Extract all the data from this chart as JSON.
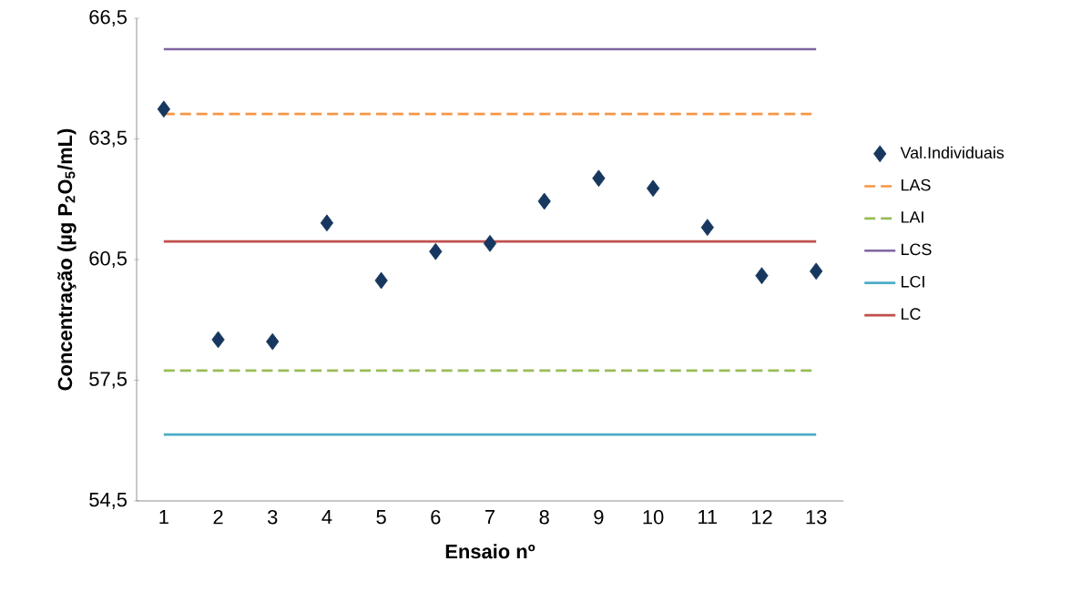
{
  "chart_data": {
    "type": "line",
    "xlabel": "Ensaio nº",
    "ylabel": "Concentração (µg P$_{2}$O$_{5}$/mL)",
    "categories": [
      "1",
      "2",
      "3",
      "4",
      "5",
      "6",
      "7",
      "8",
      "9",
      "10",
      "11",
      "12",
      "13"
    ],
    "ylim": [
      54.5,
      66.5
    ],
    "yticks": [
      {
        "value": 54.5,
        "label": "54,5"
      },
      {
        "value": 57.5,
        "label": "57,5"
      },
      {
        "value": 60.5,
        "label": "60,5"
      },
      {
        "value": 63.5,
        "label": "63,5"
      },
      {
        "value": 66.5,
        "label": "66,5"
      }
    ],
    "grid": false,
    "legend": "right",
    "series": [
      {
        "name": "Val.Individuais",
        "type": "scatter",
        "marker": "diamond",
        "color": "#17375e",
        "values": [
          64.24,
          58.51,
          58.46,
          61.41,
          59.98,
          60.7,
          60.9,
          61.95,
          62.52,
          62.27,
          61.3,
          60.1,
          60.21
        ]
      },
      {
        "name": "LAS",
        "line_style": "dashed",
        "color": "#f79646",
        "values": [
          64.12,
          64.12,
          64.12,
          64.12,
          64.12,
          64.12,
          64.12,
          64.12,
          64.12,
          64.12,
          64.12,
          64.12,
          64.12
        ]
      },
      {
        "name": "LAI",
        "line_style": "dashed",
        "color": "#9bbb59",
        "values": [
          57.74,
          57.74,
          57.74,
          57.74,
          57.74,
          57.74,
          57.74,
          57.74,
          57.74,
          57.74,
          57.74,
          57.74,
          57.74
        ]
      },
      {
        "name": "LCS",
        "line_style": "solid",
        "color": "#8064a2",
        "values": [
          65.73,
          65.73,
          65.73,
          65.73,
          65.73,
          65.73,
          65.73,
          65.73,
          65.73,
          65.73,
          65.73,
          65.73,
          65.73
        ]
      },
      {
        "name": "LCI",
        "line_style": "solid",
        "color": "#4bacc6",
        "values": [
          56.15,
          56.15,
          56.15,
          56.15,
          56.15,
          56.15,
          56.15,
          56.15,
          56.15,
          56.15,
          56.15,
          56.15,
          56.15
        ]
      },
      {
        "name": "LC",
        "line_style": "solid",
        "color": "#c0504d",
        "values": [
          60.95,
          60.95,
          60.95,
          60.95,
          60.95,
          60.95,
          60.95,
          60.95,
          60.95,
          60.95,
          60.95,
          60.95,
          60.95
        ]
      }
    ]
  }
}
